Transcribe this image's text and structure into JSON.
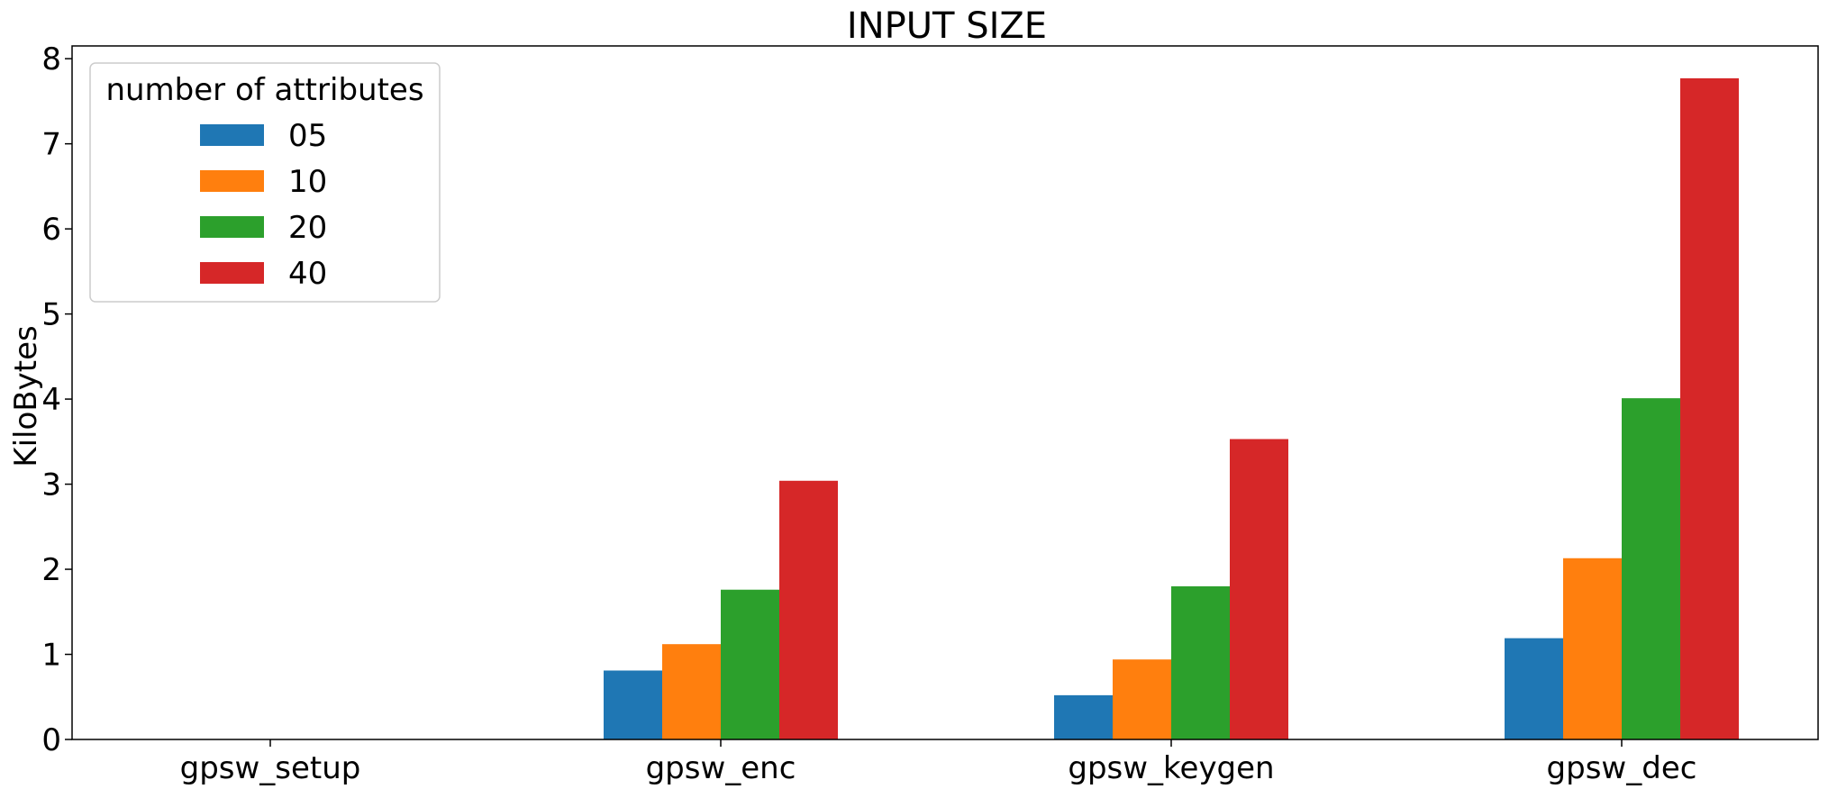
{
  "chart_data": {
    "type": "bar",
    "title": "INPUT SIZE",
    "xlabel": "",
    "ylabel": "KiloBytes",
    "categories": [
      "gpsw_setup",
      "gpsw_enc",
      "gpsw_keygen",
      "gpsw_dec"
    ],
    "series": [
      {
        "name": "05",
        "color": "#1f77b4",
        "values": [
          0,
          0.81,
          0.52,
          1.19
        ]
      },
      {
        "name": "10",
        "color": "#ff7f0e",
        "values": [
          0,
          1.12,
          0.94,
          2.13
        ]
      },
      {
        "name": "20",
        "color": "#2ca02c",
        "values": [
          0,
          1.76,
          1.8,
          4.01
        ]
      },
      {
        "name": "40",
        "color": "#d62728",
        "values": [
          0,
          3.04,
          3.53,
          7.77
        ]
      }
    ],
    "ylim": [
      0,
      8.15
    ],
    "yticks": [
      0,
      1,
      2,
      3,
      4,
      5,
      6,
      7,
      8
    ],
    "grid": false,
    "legend": {
      "title": "number of attributes",
      "placement": "top-left"
    }
  }
}
